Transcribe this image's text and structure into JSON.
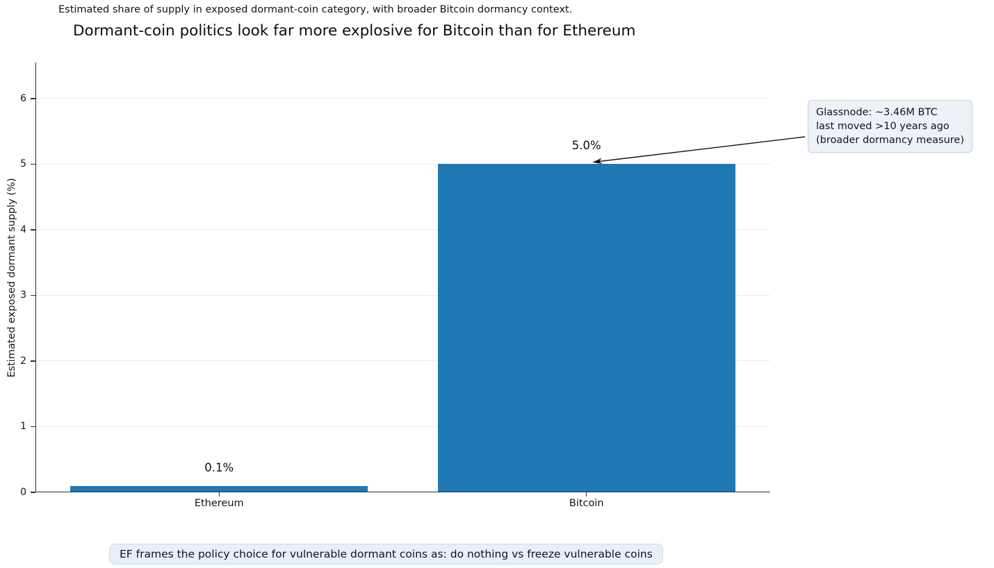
{
  "header": {
    "subtitle": "Estimated share of supply in exposed dormant-coin category, with broader Bitcoin dormancy context.",
    "title": "Dormant-coin politics look far more explosive for Bitcoin than for Ethereum"
  },
  "chart_data": {
    "type": "bar",
    "categories": [
      "Ethereum",
      "Bitcoin"
    ],
    "values": [
      0.1,
      5.0
    ],
    "bar_labels": [
      "0.1%",
      "5.0%"
    ],
    "title": "Dormant-coin politics look far more explosive for Bitcoin than for Ethereum",
    "subtitle": "Estimated share of supply in exposed dormant-coin category, with broader Bitcoin dormancy context.",
    "xlabel": "",
    "ylabel": "Estimated exposed dormant supply (%)",
    "ylim": [
      0,
      6.55
    ],
    "yticks": [
      0,
      1,
      2,
      3,
      4,
      5,
      6
    ],
    "grid": true,
    "legend": "none",
    "bar_color": "#1f77b4",
    "annotation": {
      "lines": [
        "Glassnode: ~3.46M BTC",
        "last moved >10 years ago",
        "(broader dormancy measure)"
      ],
      "target": "Bitcoin bar top"
    }
  },
  "caption": "EF frames the policy choice for vulnerable dormant coins as: do nothing vs freeze vulnerable coins"
}
